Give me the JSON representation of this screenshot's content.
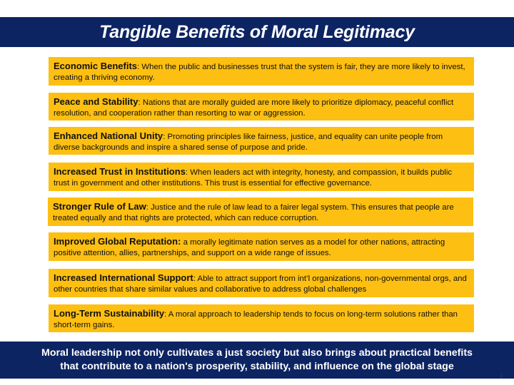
{
  "slide": {
    "title": "Tangible Benefits of Moral Legitimacy",
    "items": [
      {
        "heading": "Economic Benefits",
        "separator": ":  ",
        "text": "When the public and businesses trust that the system is fair, they are more likely to invest, creating a thriving economy."
      },
      {
        "heading": "Peace and Stability",
        "separator": ": ",
        "text": "Nations that are morally guided are more likely to prioritize diplomacy, peaceful conflict resolution, and cooperation rather than resorting to war or aggression."
      },
      {
        "heading": "Enhanced National Unity",
        "separator": ": ",
        "text": "Promoting principles like fairness, justice, and equality can unite people from diverse backgrounds and inspire a shared sense of purpose and pride."
      },
      {
        "heading": "Increased Trust in Institutions",
        "separator": ": ",
        "text": "When leaders act with integrity, honesty, and compassion, it builds public trust in government and other institutions. This trust is essential for effective governance."
      },
      {
        "heading": "Stronger Rule of Law",
        "separator": ": ",
        "text": "Justice and the rule of law lead to a fairer legal system. This ensures that people are treated equally and that rights are protected, which can reduce corruption."
      },
      {
        "heading": "Improved Global Reputation:",
        "separator": " ",
        "text": "a morally legitimate nation serves as a model for other nations, attracting positive attention, allies, partnerships, and support on a wide range of issues."
      },
      {
        "heading": "Increased International Support",
        "separator": ": ",
        "text": "Able to attract support from int’l organizations, non-governmental orgs, and other countries that share similar values and collaborative to address global challenges"
      },
      {
        "heading": "Long-Term Sustainability",
        "separator": ": ",
        "text": "A moral approach to leadership tends to focus on long-term solutions rather than short-term gains."
      }
    ],
    "footer_line1": "Moral leadership not only cultivates a just society but also brings about practical benefits",
    "footer_line2": "that contribute to a nation's prosperity, stability, and influence on the global stage",
    "page_number": "1"
  },
  "colors": {
    "banner": "#0d2463",
    "box": "#fdbf11",
    "banner_text": "#ffffff"
  }
}
